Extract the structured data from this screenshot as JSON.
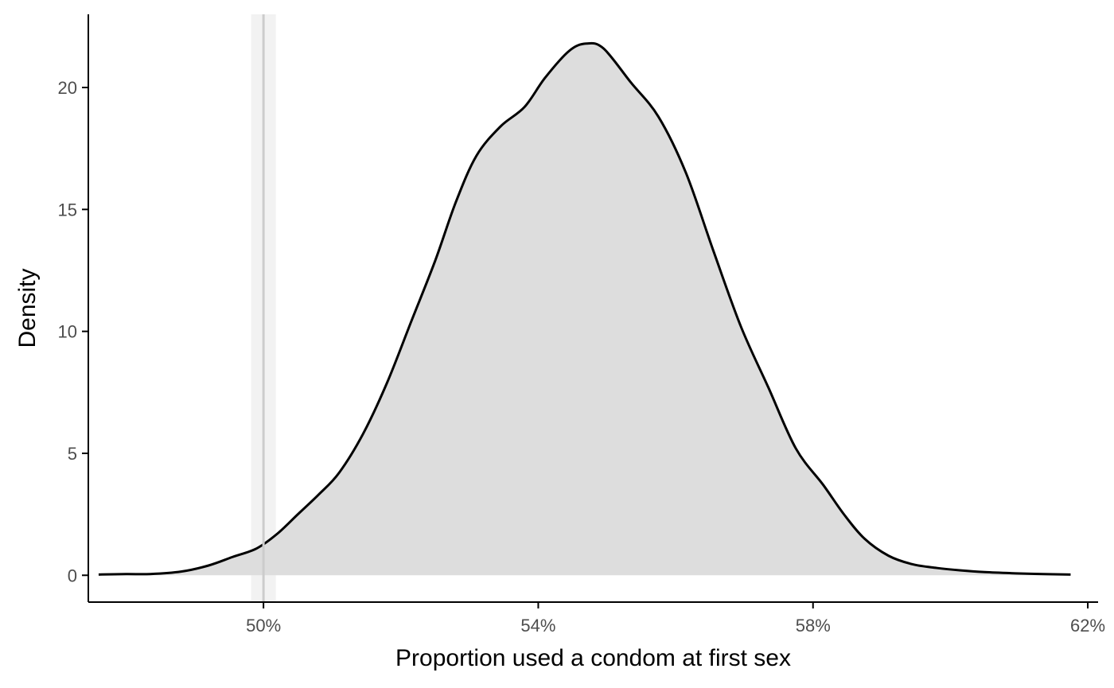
{
  "chart_data": {
    "type": "area",
    "title": "",
    "xlabel": "Proportion used a condom at first sex",
    "ylabel": "Density",
    "xlim": [
      0.4745,
      0.6215
    ],
    "ylim": [
      -1.1,
      23.0
    ],
    "x_ticks": [
      {
        "value": 0.5,
        "label": "50%"
      },
      {
        "value": 0.54,
        "label": "54%"
      },
      {
        "value": 0.58,
        "label": "58%"
      },
      {
        "value": 0.62,
        "label": "62%"
      }
    ],
    "y_ticks": [
      {
        "value": 0,
        "label": "0"
      },
      {
        "value": 5,
        "label": "5"
      },
      {
        "value": 10,
        "label": "10"
      },
      {
        "value": 15,
        "label": "15"
      },
      {
        "value": 20,
        "label": "20"
      }
    ],
    "reference_line": {
      "x": 0.5,
      "band": [
        0.4982,
        0.5018
      ]
    },
    "grid": false,
    "legend": "none",
    "colors": {
      "fill": "#dddddd",
      "line": "#000000",
      "reference_line": "#cccccc",
      "reference_band": "#f2f2f2",
      "axis": "#000000",
      "tick_label": "#4d4d4d"
    },
    "x": [
      0.476,
      0.48,
      0.4835,
      0.488,
      0.492,
      0.4955,
      0.499,
      0.502,
      0.505,
      0.508,
      0.511,
      0.5145,
      0.518,
      0.5215,
      0.525,
      0.528,
      0.531,
      0.5345,
      0.538,
      0.541,
      0.5445,
      0.547,
      0.5495,
      0.5535,
      0.5575,
      0.5615,
      0.5655,
      0.5695,
      0.5735,
      0.5775,
      0.5815,
      0.5845,
      0.5875,
      0.591,
      0.5945,
      0.598,
      0.6015,
      0.605,
      0.6095,
      0.6135,
      0.6175
    ],
    "y": [
      0.03,
      0.05,
      0.05,
      0.15,
      0.4,
      0.75,
      1.1,
      1.7,
      2.5,
      3.3,
      4.2,
      5.8,
      7.9,
      10.4,
      12.9,
      15.3,
      17.2,
      18.4,
      19.2,
      20.4,
      21.5,
      21.8,
      21.6,
      20.2,
      18.8,
      16.5,
      13.3,
      10.2,
      7.7,
      5.2,
      3.7,
      2.5,
      1.5,
      0.8,
      0.45,
      0.3,
      0.2,
      0.13,
      0.08,
      0.05,
      0.03
    ]
  }
}
